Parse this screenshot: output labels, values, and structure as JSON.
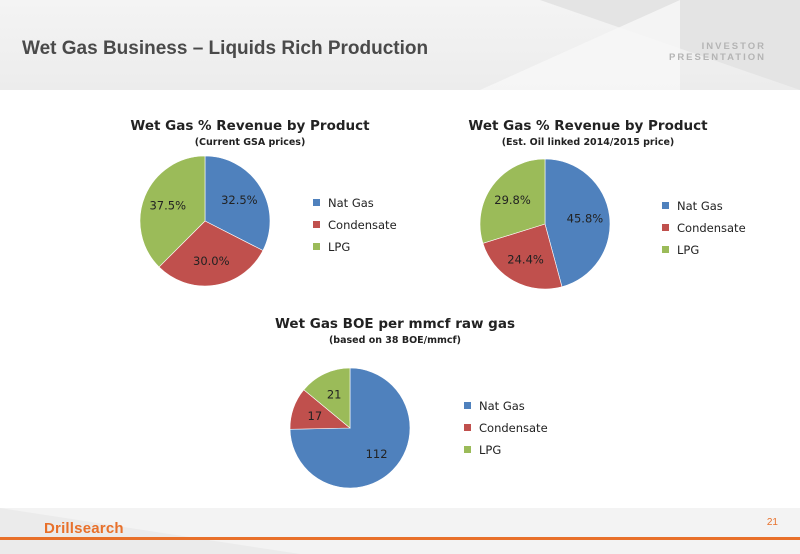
{
  "header": {
    "title": "Wet Gas Business – Liquids Rich Production",
    "tag_line1": "INVESTOR",
    "tag_line2": "PRESENTATION"
  },
  "footer": {
    "logo": "Drillsearch",
    "page_number": "21",
    "accent": "#e8702a"
  },
  "colors": {
    "nat_gas": "#4f81bd",
    "condensate": "#c0504d",
    "lpg": "#9bbb59"
  },
  "chart_data": [
    {
      "type": "pie",
      "title": "Wet Gas % Revenue by Product",
      "subtitle": "(Current GSA prices)",
      "categories": [
        "Nat Gas",
        "Condensate",
        "LPG"
      ],
      "values": [
        32.5,
        30.0,
        37.5
      ],
      "labels": [
        "32.5%",
        "30.0%",
        "37.5%"
      ],
      "legend": "right"
    },
    {
      "type": "pie",
      "title": "Wet Gas % Revenue by Product",
      "subtitle": "(Est. Oil linked 2014/2015 price)",
      "categories": [
        "Nat Gas",
        "Condensate",
        "LPG"
      ],
      "values": [
        45.8,
        24.4,
        29.8
      ],
      "labels": [
        "45.8%",
        "24.4%",
        "29.8%"
      ],
      "legend": "right"
    },
    {
      "type": "pie",
      "title": "Wet Gas BOE per mmcf raw gas",
      "subtitle": "(based on 38 BOE/mmcf)",
      "categories": [
        "Nat Gas",
        "Condensate",
        "LPG"
      ],
      "values": [
        112,
        17,
        21
      ],
      "labels": [
        "112",
        "17",
        "21"
      ],
      "legend": "right"
    }
  ]
}
